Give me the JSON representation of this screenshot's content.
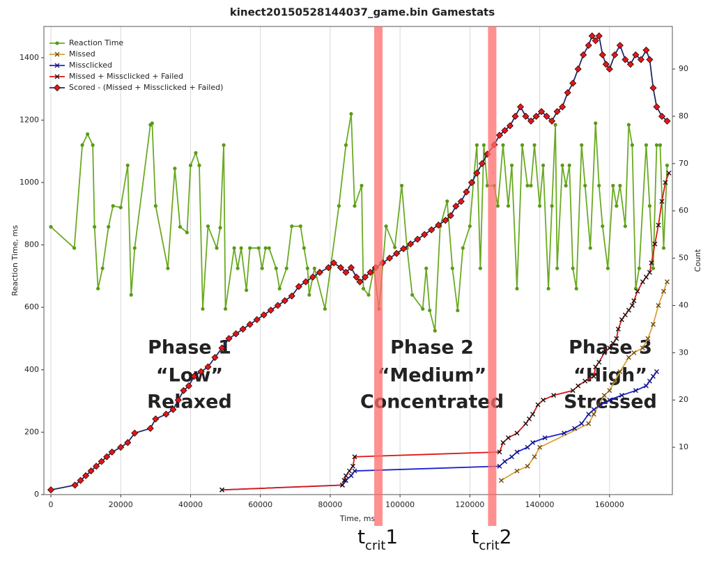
{
  "chart_data": {
    "type": "line",
    "title": "kinect20150528144037_game.bin Gamestats",
    "xlabel": "Time, ms",
    "ylabel": "Reaction Time, ms",
    "y2label": "Count",
    "xlim": [
      -2000,
      178000
    ],
    "xticks": [
      0,
      20000,
      40000,
      60000,
      80000,
      100000,
      120000,
      140000,
      160000
    ],
    "ylim": [
      0,
      1500
    ],
    "yticks": [
      0,
      200,
      400,
      600,
      800,
      1000,
      1200,
      1400
    ],
    "y2lim": [
      0,
      99
    ],
    "y2ticks": [
      10,
      20,
      30,
      40,
      50,
      60,
      70,
      80,
      90
    ],
    "grid": true,
    "legend": "upper left",
    "series": [
      {
        "name": "Reaction Time",
        "color": "#6aaa22",
        "marker": "circle",
        "marker_color": "#5a9a18",
        "axis": "y",
        "x": [
          0,
          6700,
          9000,
          10500,
          12000,
          12500,
          13500,
          14800,
          16500,
          17800,
          20000,
          22000,
          23000,
          24000,
          28500,
          29000,
          30000,
          33500,
          35500,
          37000,
          39000,
          40000,
          41500,
          42500,
          43500,
          45000,
          47500,
          48500,
          49500,
          50000,
          52500,
          53500,
          54500,
          56000,
          57000,
          59500,
          60500,
          61500,
          62500,
          64500,
          65500,
          67500,
          69000,
          71500,
          72500,
          73500,
          74000,
          75500,
          78500,
          82500,
          84500,
          86000,
          87000,
          89000,
          89500,
          91000,
          92500,
          94000,
          96000,
          98500,
          100500,
          102000,
          103500,
          106500,
          107500,
          108500,
          110000,
          111500,
          113500,
          115000,
          116500,
          118000,
          120000,
          121000,
          122000,
          123000,
          124000,
          125000,
          127000,
          128000,
          129500,
          131000,
          132000,
          133500,
          135000,
          136500,
          137500,
          138500,
          140000,
          141000,
          142500,
          143500,
          144500,
          145000,
          146500,
          147500,
          148500,
          149500,
          150500,
          152000,
          153000,
          154500,
          156000,
          157000,
          158000,
          159500,
          161000,
          162000,
          163000,
          164500,
          165500,
          166500,
          167500,
          168500,
          170500,
          171500,
          172500,
          173500,
          174500,
          175500,
          176500
        ],
        "values": [
          858,
          790,
          1120,
          1155,
          1120,
          858,
          660,
          725,
          858,
          925,
          920,
          1055,
          640,
          790,
          1185,
          1190,
          925,
          725,
          1045,
          858,
          840,
          1055,
          1095,
          1055,
          595,
          860,
          790,
          855,
          1120,
          595,
          790,
          725,
          790,
          655,
          790,
          790,
          725,
          790,
          790,
          725,
          660,
          725,
          860,
          860,
          790,
          725,
          640,
          725,
          595,
          925,
          1120,
          1220,
          925,
          990,
          660,
          640,
          725,
          595,
          860,
          792,
          990,
          790,
          640,
          595,
          725,
          590,
          525,
          860,
          940,
          725,
          590,
          790,
          860,
          1000,
          1120,
          725,
          1120,
          990,
          990,
          925,
          1120,
          925,
          1055,
          660,
          1120,
          990,
          990,
          1120,
          925,
          1055,
          660,
          925,
          1185,
          725,
          1055,
          990,
          1055,
          725,
          660,
          1120,
          990,
          790,
          1190,
          990,
          860,
          725,
          990,
          925,
          990,
          860,
          1185,
          1120,
          660,
          725,
          1120,
          925,
          725,
          1120,
          1120,
          790,
          1055
        ]
      },
      {
        "name": "Missed",
        "color": "#d9a23a",
        "marker": "x",
        "marker_color": "#6b4a10",
        "axis": "y2",
        "x": [
          129000,
          133500,
          136500,
          138500,
          140000,
          154000,
          155500,
          157000,
          158500,
          160000,
          161500,
          163000,
          165500,
          167000,
          169500,
          171000,
          172500,
          174000,
          175500,
          176500
        ],
        "values": [
          3,
          5,
          6,
          8,
          10,
          15,
          17,
          19,
          21,
          22,
          24,
          26,
          29,
          30,
          31,
          33,
          36,
          40,
          43,
          45
        ]
      },
      {
        "name": "Missclicked",
        "color": "#1a22d0",
        "marker": "x",
        "marker_color": "#101080",
        "axis": "y2",
        "x": [
          49000,
          83500,
          84500,
          86000,
          87000,
          128500,
          130000,
          132000,
          133500,
          136500,
          138000,
          141500,
          147000,
          150000,
          152000,
          154000,
          155500,
          157500,
          160000,
          163500,
          167500,
          170500,
          171500,
          172500,
          173500
        ],
        "values": [
          1,
          2,
          3,
          4,
          5,
          6,
          7,
          8,
          9,
          10,
          11,
          12,
          13,
          14,
          15,
          17,
          18,
          19,
          20,
          21,
          22,
          23,
          24,
          25,
          26
        ]
      },
      {
        "name": "Missed + Missclicked + Failed",
        "color": "#dd1515",
        "marker": "x",
        "marker_color": "#111111",
        "axis": "y2",
        "x": [
          49000,
          83500,
          84000,
          84500,
          85500,
          86500,
          87000,
          128500,
          129500,
          131000,
          133500,
          136000,
          137000,
          138000,
          139500,
          141000,
          144000,
          149500,
          151000,
          153000,
          155500,
          156000,
          157000,
          158500,
          160000,
          161000,
          162000,
          162500,
          163500,
          164500,
          165500,
          166500,
          167000,
          168000,
          169500,
          170500,
          171500,
          172000,
          173000,
          174000,
          175000,
          176000,
          177000
        ],
        "values": [
          1,
          2,
          3,
          4,
          5,
          6,
          8,
          9,
          11,
          12,
          13,
          15,
          16,
          17,
          19,
          20,
          21,
          22,
          23,
          24,
          25,
          27,
          28,
          30,
          31,
          32,
          33,
          35,
          37,
          38,
          39,
          40,
          41,
          43,
          45,
          46,
          47,
          49,
          53,
          57,
          62,
          66,
          68
        ]
      },
      {
        "name": "Scored - (Missed + Missclicked + Failed)",
        "color": "#1c2a66",
        "marker": "diamond",
        "marker_color": "#e01818",
        "axis": "y2",
        "x": [
          0,
          6900,
          8500,
          10000,
          11500,
          13000,
          14500,
          16000,
          17500,
          20000,
          22000,
          24000,
          28500,
          30000,
          33000,
          35000,
          36500,
          38000,
          39500,
          41000,
          43000,
          45000,
          47000,
          49000,
          51000,
          53000,
          55000,
          57000,
          59000,
          61000,
          63000,
          65000,
          67000,
          69000,
          71000,
          73000,
          75000,
          77000,
          79500,
          81000,
          83000,
          84500,
          86000,
          87500,
          88500,
          90000,
          91500,
          93000,
          95000,
          97000,
          99000,
          101000,
          103000,
          105000,
          107000,
          109000,
          111000,
          113000,
          114500,
          116000,
          117500,
          119000,
          120500,
          122000,
          123500,
          125000,
          127000,
          128500,
          130000,
          131500,
          133000,
          134500,
          136000,
          137500,
          139000,
          140500,
          142000,
          143500,
          145000,
          146500,
          148000,
          149500,
          151000,
          152500,
          154000,
          155000,
          156000,
          157000,
          158000,
          159000,
          160000,
          161500,
          163000,
          164500,
          166000,
          167500,
          169000,
          170500,
          171500,
          172500,
          173500,
          175000,
          176500
        ],
        "values": [
          1,
          2,
          3,
          4,
          5,
          6,
          7,
          8,
          9,
          10,
          11,
          13,
          14,
          16,
          17,
          18,
          20,
          22,
          23,
          25,
          26,
          27,
          29,
          31,
          33,
          34,
          35,
          36,
          37,
          38,
          39,
          40,
          41,
          42,
          44,
          45,
          46,
          47,
          48,
          49,
          48,
          47,
          48,
          46,
          45,
          46,
          47,
          48,
          49,
          50,
          51,
          52,
          53,
          54,
          55,
          56,
          57,
          58,
          59,
          61,
          62,
          64,
          66,
          68,
          70,
          72,
          74,
          76,
          77,
          78,
          80,
          82,
          80,
          79,
          80,
          81,
          80,
          79,
          81,
          82,
          85,
          87,
          90,
          93,
          95,
          97,
          96,
          97,
          93,
          91,
          90,
          93,
          95,
          92,
          91,
          93,
          92,
          94,
          92,
          86,
          82,
          80,
          79
        ]
      }
    ],
    "critical_times": [
      {
        "x": 93800,
        "label": [
          "t",
          "crit",
          "1"
        ]
      },
      {
        "x": 126400,
        "label": [
          "t",
          "crit",
          "2"
        ]
      }
    ],
    "phases": [
      {
        "lines": [
          "Phase 1",
          "“Low”",
          "Relaxed"
        ],
        "color": "#7dd63c"
      },
      {
        "lines": [
          "Phase 2",
          "“Medium”",
          "Concentrated"
        ],
        "color": "#5050d8"
      },
      {
        "lines": [
          "Phase 3",
          "“High”",
          "Stressed"
        ],
        "color": "#e05858"
      }
    ]
  }
}
